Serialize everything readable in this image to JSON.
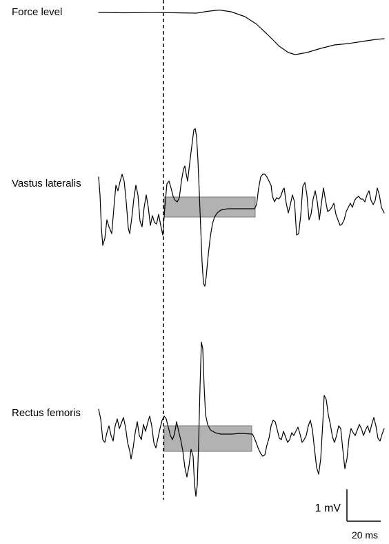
{
  "labels": {
    "force": "Force level",
    "vastus": "Vastus lateralis",
    "rectus": "Rectus femoris"
  },
  "scale_bar": {
    "amplitude": "1 mV",
    "time": "20 ms"
  },
  "colors": {
    "trace": "#000000",
    "box_fill": "#aaaaaa",
    "box_stroke": "#777777",
    "marker_line": "#000000"
  }
}
